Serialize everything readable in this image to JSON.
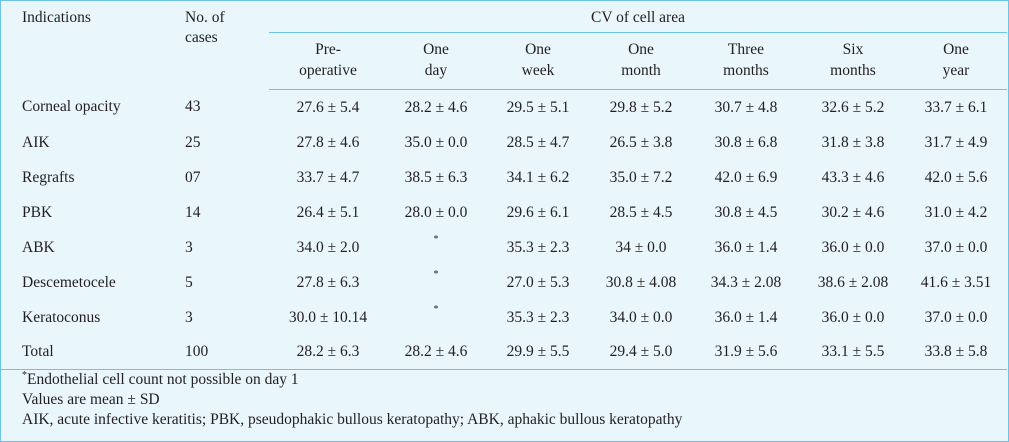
{
  "header": {
    "indications": "Indications",
    "no_of_cases_line1": "No. of",
    "no_of_cases_line2": "cases",
    "cv_title": "CV of cell area",
    "columns": [
      {
        "l1": "Pre-",
        "l2": "operative"
      },
      {
        "l1": "One",
        "l2": "day"
      },
      {
        "l1": "One",
        "l2": "week"
      },
      {
        "l1": "One",
        "l2": "month"
      },
      {
        "l1": "Three",
        "l2": "months"
      },
      {
        "l1": "Six",
        "l2": "months"
      },
      {
        "l1": "One",
        "l2": "year"
      }
    ]
  },
  "rows": [
    {
      "indication": "Corneal opacity",
      "cases": "43",
      "values": [
        "27.6 ± 5.4",
        "28.2 ± 4.6",
        "29.5 ± 5.1",
        "29.8 ± 5.2",
        "30.7 ± 4.8",
        "32.6 ± 5.2",
        "33.7 ± 6.1"
      ]
    },
    {
      "indication": "AIK",
      "cases": "25",
      "values": [
        "27.8 ± 4.6",
        "35.0 ± 0.0",
        "28.5 ± 4.7",
        "26.5 ± 3.8",
        "30.8 ± 6.8",
        "31.8 ± 3.8",
        "31.7 ± 4.9"
      ]
    },
    {
      "indication": "Regrafts",
      "cases": "07",
      "values": [
        "33.7 ± 4.7",
        "38.5 ± 6.3",
        "34.1 ± 6.2",
        "35.0 ± 7.2",
        "42.0 ± 6.9",
        "43.3 ± 4.6",
        "42.0 ± 5.6"
      ]
    },
    {
      "indication": "PBK",
      "cases": "14",
      "values": [
        "26.4 ± 5.1",
        "28.0 ± 0.0",
        "29.6 ± 6.1",
        "28.5 ± 4.5",
        "30.8 ± 4.5",
        "30.2 ± 4.6",
        "31.0 ± 4.2"
      ]
    },
    {
      "indication": "ABK",
      "cases": "3",
      "values": [
        "34.0 ± 2.0",
        "*",
        "35.3 ± 2.3",
        "34 ± 0.0",
        "36.0 ± 1.4",
        "36.0 ± 0.0",
        "37.0 ± 0.0"
      ]
    },
    {
      "indication": "Descemetocele",
      "cases": "5",
      "values": [
        "27.8 ± 6.3",
        "*",
        "27.0 ± 5.3",
        "30.8 ± 4.08",
        "34.3 ± 2.08",
        "38.6 ± 2.08",
        "41.6 ± 3.51"
      ]
    },
    {
      "indication": "Keratoconus",
      "cases": "3",
      "values": [
        "30.0 ± 10.14",
        "*",
        "35.3 ± 2.3",
        "34.0 ± 0.0",
        "36.0 ± 1.4",
        "36.0 ± 0.0",
        "37.0 ± 0.0"
      ]
    },
    {
      "indication": "Total",
      "cases": "100",
      "values": [
        "28.2 ± 6.3",
        "28.2 ± 4.6",
        "29.9 ± 5.5",
        "29.4 ± 5.0",
        "31.9 ± 5.6",
        "33.1 ± 5.5",
        "33.8 ± 5.8"
      ]
    }
  ],
  "footnotes": {
    "star_mark": "*",
    "star_text": "Endothelial cell count not possible on day 1",
    "values_note": "Values are mean ± SD",
    "abbreviations": "AIK, acute infective keratitis; PBK, pseudophakic bullous keratopathy; ABK, aphakic bullous keratopathy"
  }
}
